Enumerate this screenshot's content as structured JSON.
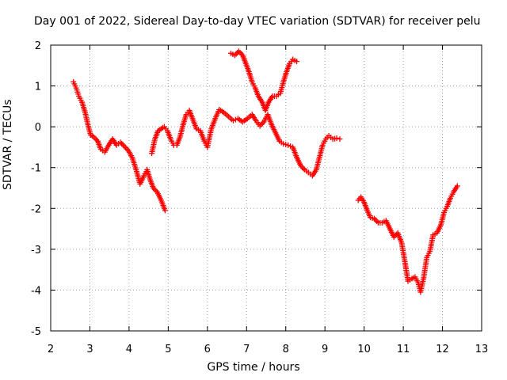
{
  "chart_data": {
    "type": "scatter",
    "title": "Day 001 of 2022, Sidereal Day-to-day VTEC variation (SDTVAR) for receiver pelu",
    "xlabel": "GPS time / hours",
    "ylabel": "SDTVAR / TECUs",
    "xlim": [
      2,
      13
    ],
    "ylim": [
      -5,
      2
    ],
    "x_ticks": [
      "2",
      "3",
      "4",
      "5",
      "6",
      "7",
      "8",
      "9",
      "10",
      "11",
      "12",
      "13"
    ],
    "y_ticks": [
      "-5",
      "-4",
      "-3",
      "-2",
      "-1",
      "0",
      "1",
      "2"
    ],
    "grid": true,
    "marker": "plus",
    "color": "#ff0000",
    "series": [
      {
        "points": [
          [
            2.58,
            1.1
          ],
          [
            2.65,
            0.95
          ],
          [
            2.72,
            0.75
          ],
          [
            2.8,
            0.6
          ],
          [
            2.88,
            0.35
          ],
          [
            2.95,
            0.05
          ],
          [
            3.02,
            -0.2
          ],
          [
            3.1,
            -0.25
          ],
          [
            3.2,
            -0.35
          ],
          [
            3.28,
            -0.55
          ],
          [
            3.38,
            -0.62
          ],
          [
            3.48,
            -0.45
          ],
          [
            3.58,
            -0.3
          ],
          [
            3.68,
            -0.45
          ],
          [
            3.78,
            -0.38
          ],
          [
            3.88,
            -0.48
          ],
          [
            3.98,
            -0.58
          ],
          [
            4.08,
            -0.75
          ],
          [
            4.18,
            -1.05
          ],
          [
            4.28,
            -1.4
          ],
          [
            4.38,
            -1.2
          ],
          [
            4.46,
            -1.05
          ],
          [
            4.54,
            -1.3
          ],
          [
            4.62,
            -1.5
          ],
          [
            4.72,
            -1.6
          ],
          [
            4.82,
            -1.8
          ],
          [
            4.92,
            -2.05
          ]
        ]
      },
      {
        "points": [
          [
            4.58,
            -0.65
          ],
          [
            4.66,
            -0.3
          ],
          [
            4.74,
            -0.1
          ],
          [
            4.82,
            -0.05
          ],
          [
            4.9,
            0.0
          ],
          [
            4.98,
            -0.1
          ],
          [
            5.06,
            -0.3
          ],
          [
            5.14,
            -0.45
          ],
          [
            5.22,
            -0.45
          ],
          [
            5.3,
            -0.25
          ],
          [
            5.38,
            0.05
          ],
          [
            5.46,
            0.3
          ],
          [
            5.54,
            0.4
          ],
          [
            5.62,
            0.2
          ],
          [
            5.72,
            -0.05
          ],
          [
            5.82,
            -0.1
          ],
          [
            5.92,
            -0.35
          ],
          [
            6.0,
            -0.5
          ],
          [
            6.1,
            -0.05
          ],
          [
            6.2,
            0.2
          ],
          [
            6.3,
            0.42
          ],
          [
            6.42,
            0.35
          ],
          [
            6.54,
            0.25
          ],
          [
            6.66,
            0.15
          ],
          [
            6.78,
            0.2
          ],
          [
            6.9,
            0.12
          ],
          [
            7.02,
            0.2
          ],
          [
            7.14,
            0.3
          ],
          [
            7.24,
            0.15
          ],
          [
            7.34,
            0.02
          ],
          [
            7.44,
            0.12
          ],
          [
            7.54,
            0.3
          ],
          [
            7.64,
            0.05
          ],
          [
            7.74,
            -0.15
          ],
          [
            7.84,
            -0.35
          ],
          [
            7.94,
            -0.42
          ],
          [
            8.06,
            -0.45
          ],
          [
            8.18,
            -0.5
          ],
          [
            8.28,
            -0.75
          ],
          [
            8.38,
            -0.95
          ],
          [
            8.48,
            -1.05
          ],
          [
            8.58,
            -1.12
          ],
          [
            8.68,
            -1.2
          ],
          [
            8.78,
            -1.05
          ],
          [
            8.86,
            -0.75
          ],
          [
            8.94,
            -0.45
          ],
          [
            9.02,
            -0.3
          ],
          [
            9.1,
            -0.22
          ],
          [
            9.2,
            -0.3
          ],
          [
            9.3,
            -0.28
          ],
          [
            9.38,
            -0.3
          ]
        ]
      },
      {
        "points": [
          [
            6.6,
            1.8
          ],
          [
            6.7,
            1.75
          ],
          [
            6.8,
            1.85
          ],
          [
            6.9,
            1.75
          ],
          [
            6.98,
            1.55
          ],
          [
            7.06,
            1.35
          ],
          [
            7.14,
            1.1
          ],
          [
            7.22,
            0.95
          ],
          [
            7.3,
            0.75
          ],
          [
            7.4,
            0.6
          ],
          [
            7.48,
            0.4
          ],
          [
            7.56,
            0.6
          ],
          [
            7.66,
            0.75
          ],
          [
            7.76,
            0.75
          ],
          [
            7.86,
            0.82
          ],
          [
            7.94,
            1.1
          ],
          [
            8.02,
            1.35
          ],
          [
            8.1,
            1.55
          ],
          [
            8.18,
            1.65
          ],
          [
            8.28,
            1.6
          ]
        ]
      },
      {
        "points": [
          [
            9.85,
            -1.8
          ],
          [
            9.92,
            -1.72
          ],
          [
            10.0,
            -1.85
          ],
          [
            10.08,
            -2.05
          ],
          [
            10.16,
            -2.22
          ],
          [
            10.26,
            -2.25
          ],
          [
            10.36,
            -2.35
          ],
          [
            10.46,
            -2.35
          ],
          [
            10.56,
            -2.3
          ],
          [
            10.66,
            -2.5
          ],
          [
            10.76,
            -2.7
          ],
          [
            10.86,
            -2.6
          ],
          [
            10.96,
            -2.85
          ],
          [
            11.04,
            -3.3
          ],
          [
            11.12,
            -3.78
          ],
          [
            11.22,
            -3.72
          ],
          [
            11.3,
            -3.68
          ],
          [
            11.38,
            -3.82
          ],
          [
            11.44,
            -4.05
          ],
          [
            11.52,
            -3.7
          ],
          [
            11.6,
            -3.2
          ],
          [
            11.68,
            -3.05
          ],
          [
            11.76,
            -2.65
          ],
          [
            11.86,
            -2.6
          ],
          [
            11.96,
            -2.4
          ],
          [
            12.04,
            -2.1
          ],
          [
            12.12,
            -1.95
          ],
          [
            12.2,
            -1.75
          ],
          [
            12.28,
            -1.6
          ],
          [
            12.38,
            -1.45
          ]
        ]
      }
    ]
  }
}
